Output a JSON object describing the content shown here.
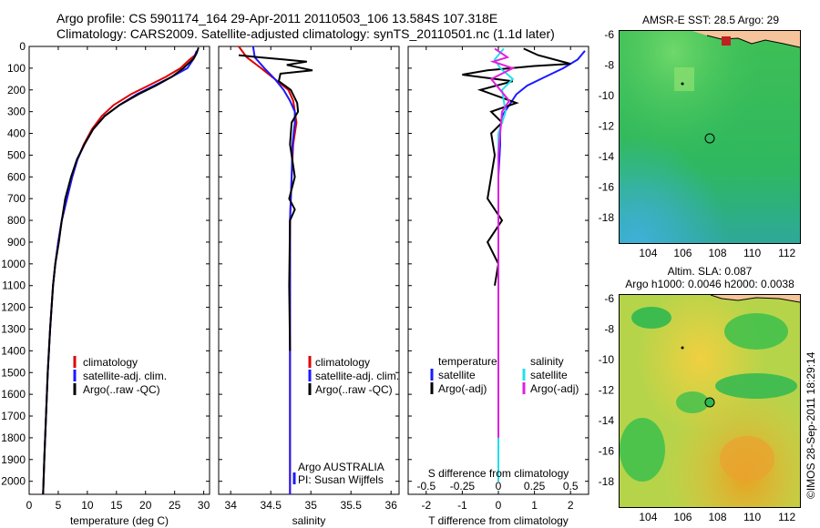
{
  "header": {
    "line1": "Argo profile: CS 5901174_164 29-Apr-2011 20110503_106 13.584S 107.318E",
    "line2": "Climatology: CARS2009. Satellite-adjusted climatology: synTS_20110501.nc (1.1d later)"
  },
  "colors": {
    "climatology": "#e00000",
    "satellite": "#1a1aff",
    "argo": "#000000",
    "sal_satellite": "#22e0e8",
    "sal_argo": "#e020e0"
  },
  "chart_data": [
    {
      "type": "line",
      "xlabel": "temperature (deg C)",
      "ylabel": "",
      "xlim": [
        0,
        31
      ],
      "ylim": [
        2060,
        0
      ],
      "xticks": [
        0,
        5,
        10,
        15,
        20,
        25,
        30
      ],
      "yticks": [
        0,
        100,
        200,
        300,
        400,
        500,
        600,
        700,
        800,
        900,
        1000,
        1100,
        1200,
        1300,
        1400,
        1500,
        1600,
        1700,
        1800,
        1900,
        2000
      ],
      "legend": [
        "climatology",
        "satellite-adj. clim.",
        "Argo(..raw -QC)"
      ],
      "series": [
        {
          "name": "climatology",
          "color": "red",
          "x": [
            28.5,
            27.6,
            26,
            23.5,
            20.5,
            17.5,
            14.5,
            12.5,
            10.8,
            9.4,
            8.3,
            7.4,
            6.5,
            5.6,
            5.0,
            4.5,
            4.1,
            3.6,
            3.2,
            2.9,
            2.6,
            2.4
          ],
          "y": [
            40,
            60,
            100,
            140,
            180,
            220,
            270,
            320,
            380,
            450,
            520,
            600,
            700,
            800,
            900,
            1000,
            1100,
            1300,
            1500,
            1700,
            1900,
            2060
          ]
        },
        {
          "name": "satellite-adj. clim.",
          "color": "blue",
          "x": [
            28.8,
            28.2,
            27.2,
            24.5,
            21.5,
            18.5,
            15.5,
            13.0,
            11.0,
            9.5,
            8.3,
            7.4,
            6.5,
            5.6,
            5.0,
            4.5,
            4.1,
            3.6,
            3.2,
            2.9,
            2.6,
            2.4
          ],
          "y": [
            20,
            60,
            100,
            140,
            180,
            220,
            270,
            320,
            380,
            450,
            520,
            600,
            700,
            800,
            900,
            1000,
            1100,
            1300,
            1500,
            1700,
            1900,
            2060
          ]
        },
        {
          "name": "Argo(..raw -QC)",
          "color": "black",
          "x": [
            29.1,
            28.8,
            28.3,
            26.5,
            24.5,
            21.8,
            18.8,
            15.5,
            13.0,
            11.0,
            9.5,
            8.2,
            7.2,
            6.2,
            5.6,
            5.1,
            4.5,
            4.1,
            3.6,
            3.2,
            2.9,
            2.6,
            2.4
          ],
          "y": [
            5,
            30,
            55,
            100,
            140,
            180,
            220,
            270,
            320,
            380,
            450,
            520,
            600,
            700,
            800,
            900,
            1000,
            1100,
            1300,
            1500,
            1700,
            1900,
            2060
          ]
        }
      ]
    },
    {
      "type": "line",
      "xlabel": "salinity",
      "xlim": [
        33.85,
        36.1
      ],
      "ylim": [
        2060,
        0
      ],
      "xticks": [
        34,
        34.5,
        35,
        35.5,
        36
      ],
      "legend": [
        "climatology",
        "satellite-adj. clim.",
        "Argo(..raw -QC)"
      ],
      "annotation": [
        "Argo AUSTRALIA",
        "PI: Susan Wijffels"
      ],
      "series": [
        {
          "name": "climatology",
          "color": "red",
          "x": [
            34.1,
            34.2,
            34.38,
            34.55,
            34.72,
            34.78,
            34.8,
            34.82,
            34.78,
            34.76,
            34.74,
            34.74,
            34.74,
            34.74,
            34.74,
            34.74
          ],
          "y": [
            0,
            50,
            100,
            150,
            200,
            250,
            300,
            350,
            450,
            600,
            800,
            1000,
            1300,
            1600,
            1900,
            2060
          ]
        },
        {
          "name": "satellite-adj. clim.",
          "color": "blue",
          "x": [
            34.28,
            34.3,
            34.42,
            34.55,
            34.66,
            34.74,
            34.8,
            34.8,
            34.77,
            34.76,
            34.74,
            34.74,
            34.74,
            34.74,
            34.74,
            34.74
          ],
          "y": [
            0,
            50,
            100,
            150,
            200,
            250,
            300,
            350,
            450,
            600,
            800,
            1000,
            1300,
            1600,
            1900,
            2060
          ]
        },
        {
          "name": "Argo(..raw -QC)",
          "color": "black",
          "x": [
            34.1,
            34.35,
            34.65,
            34.95,
            34.7,
            35.02,
            34.62,
            34.6,
            34.75,
            34.83,
            34.84,
            34.76,
            34.74,
            34.8,
            34.73,
            34.8,
            34.74,
            34.73,
            34.74
          ],
          "y": [
            40,
            50,
            60,
            70,
            85,
            110,
            125,
            160,
            200,
            260,
            300,
            350,
            450,
            600,
            700,
            750,
            800,
            1100,
            1400
          ]
        }
      ]
    },
    {
      "type": "line",
      "xlabel": "T difference from climatology",
      "xlabel_top": "S difference from climatology",
      "xlim": [
        -2.5,
        2.5
      ],
      "ylim": [
        2060,
        0
      ],
      "xticks": [
        -2,
        -1,
        0,
        1,
        2
      ],
      "xticks_s": [
        -0.5,
        -0.25,
        0,
        0.25,
        0.5
      ],
      "legend": [
        "temperature",
        "satellite",
        "Argo(-adj)",
        "salinity",
        "satellite",
        "Argo(-adj)"
      ],
      "series": [
        {
          "name": "temperature satellite",
          "color": "blue",
          "x": [
            2.4,
            2.2,
            1.8,
            1.3,
            0.8,
            0.5,
            0.3,
            0.1,
            0.05,
            0.05,
            0.0,
            0.0,
            0.0,
            0.0,
            0.0
          ],
          "y": [
            20,
            60,
            100,
            140,
            180,
            220,
            270,
            320,
            380,
            450,
            600,
            800,
            1200,
            1600,
            2000
          ]
        },
        {
          "name": "temperature Argo(-adj)",
          "color": "black",
          "x": [
            0.7,
            1.1,
            2.0,
            1.0,
            -0.3,
            -1.0,
            0.4,
            -0.5,
            0.5,
            -0.2,
            0.1,
            -0.2,
            -0.1,
            -0.3,
            0.1,
            -0.3,
            0.0,
            -0.1
          ],
          "y": [
            10,
            40,
            80,
            90,
            110,
            130,
            160,
            200,
            260,
            300,
            350,
            400,
            500,
            700,
            800,
            900,
            1000,
            1100
          ]
        },
        {
          "name": "salinity satellite",
          "color": "cyan",
          "x": [
            0.15,
            -0.1,
            0.05,
            0.4,
            0.1,
            0.2,
            0.0,
            0.0,
            0.0,
            0.0,
            0.0,
            0.0,
            0.0
          ],
          "y": [
            10,
            60,
            100,
            150,
            200,
            300,
            400,
            500,
            800,
            1000,
            1400,
            1800,
            2000
          ]
        },
        {
          "name": "salinity Argo(-adj)",
          "color": "magenta",
          "x": [
            -0.1,
            0.25,
            -0.15,
            0.4,
            -0.2,
            0.3,
            0.1,
            0.05,
            0.0,
            0.0,
            0.0,
            0.0,
            0.0
          ],
          "y": [
            10,
            50,
            70,
            100,
            150,
            250,
            300,
            400,
            500,
            800,
            1000,
            1400,
            1800
          ]
        }
      ]
    },
    {
      "type": "heatmap",
      "title": "AMSR-E SST: 28.5  Argo: 29",
      "xticks": [
        104,
        106,
        108,
        110,
        112
      ],
      "yticks": [
        -6,
        -8,
        -10,
        -12,
        -14,
        -16,
        -18
      ],
      "xlim": [
        102.3,
        112.7
      ],
      "ylim": [
        -19.6,
        -5.7
      ]
    },
    {
      "type": "heatmap",
      "title": "Altim. SLA: 0.087",
      "subtitle": "Argo h1000: 0.0046 h2000: 0.0038",
      "xticks": [
        104,
        106,
        108,
        110,
        112
      ],
      "yticks": [
        -6,
        -8,
        -10,
        -12,
        -14,
        -16,
        -18
      ],
      "xlim": [
        102.3,
        112.7
      ],
      "ylim": [
        -19.6,
        -5.7
      ]
    }
  ],
  "footer_credit": "©IMOS 28-Sep-2011 18:29:14"
}
